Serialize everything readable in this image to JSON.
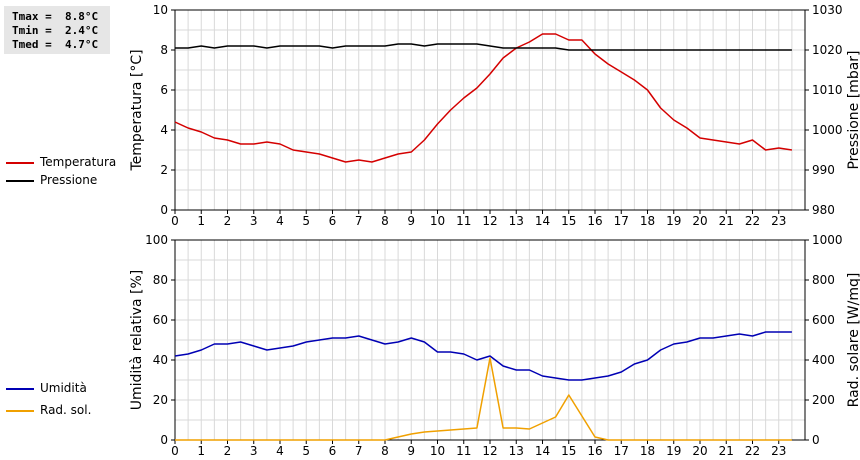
{
  "stats": {
    "tmax": "Tmax =  8.8°C",
    "tmin": "Tmin =  2.4°C",
    "tmed": "Tmed =  4.7°C"
  },
  "legend_top": [
    {
      "label": "Temperatura",
      "color": "#d40000"
    },
    {
      "label": "Pressione",
      "color": "#000000"
    }
  ],
  "legend_bottom": [
    {
      "label": "Umidità",
      "color": "#0000b4"
    },
    {
      "label": "Rad. sol.",
      "color": "#f0a000"
    }
  ],
  "chart_data": [
    {
      "type": "line",
      "xlabel": "",
      "xlim": [
        0,
        24
      ],
      "xticks": [
        0,
        1,
        2,
        3,
        4,
        5,
        6,
        7,
        8,
        9,
        10,
        11,
        12,
        13,
        14,
        15,
        16,
        17,
        18,
        19,
        20,
        21,
        22,
        23
      ],
      "grid": true,
      "y_left": {
        "label": "Temperatura [°C]",
        "lim": [
          0,
          10
        ],
        "ticks": [
          0,
          2,
          4,
          6,
          8,
          10
        ]
      },
      "y_right": {
        "label": "Pressione [mbar]",
        "lim": [
          980,
          1030
        ],
        "ticks": [
          980,
          990,
          1000,
          1010,
          1020,
          1030
        ]
      },
      "x": [
        0,
        0.5,
        1,
        1.5,
        2,
        2.5,
        3,
        3.5,
        4,
        4.5,
        5,
        5.5,
        6,
        6.5,
        7,
        7.5,
        8,
        8.5,
        9,
        9.5,
        10,
        10.5,
        11,
        11.5,
        12,
        12.5,
        13,
        13.5,
        14,
        14.5,
        15,
        15.5,
        16,
        16.5,
        17,
        17.5,
        18,
        18.5,
        19,
        19.5,
        20,
        20.5,
        21,
        21.5,
        22,
        22.5,
        23,
        23.5
      ],
      "series": [
        {
          "name": "Temperatura",
          "axis": "left",
          "color": "#d40000",
          "values": [
            4.4,
            4.1,
            3.9,
            3.6,
            3.5,
            3.3,
            3.3,
            3.4,
            3.3,
            3.0,
            2.9,
            2.8,
            2.6,
            2.4,
            2.5,
            2.4,
            2.6,
            2.8,
            2.9,
            3.5,
            4.3,
            5.0,
            5.6,
            6.1,
            6.8,
            7.6,
            8.1,
            8.4,
            8.8,
            8.8,
            8.5,
            8.5,
            7.8,
            7.3,
            6.9,
            6.5,
            6.0,
            5.1,
            4.5,
            4.1,
            3.6,
            3.5,
            3.4,
            3.3,
            3.5,
            3.0,
            3.1,
            3.0
          ]
        },
        {
          "name": "Pressione",
          "axis": "right",
          "color": "#000000",
          "values": [
            1020.5,
            1020.5,
            1021,
            1020.5,
            1021,
            1021,
            1021,
            1020.5,
            1021,
            1021,
            1021,
            1021,
            1020.5,
            1021,
            1021,
            1021,
            1021,
            1021.5,
            1021.5,
            1021,
            1021.5,
            1021.5,
            1021.5,
            1021.5,
            1021,
            1020.5,
            1020.5,
            1020.5,
            1020.5,
            1020.5,
            1020,
            1020,
            1020,
            1020,
            1020,
            1020,
            1020,
            1020,
            1020,
            1020,
            1020,
            1020,
            1020,
            1020,
            1020,
            1020,
            1020,
            1020
          ]
        }
      ]
    },
    {
      "type": "line",
      "xlabel": "",
      "xlim": [
        0,
        24
      ],
      "xticks": [
        0,
        1,
        2,
        3,
        4,
        5,
        6,
        7,
        8,
        9,
        10,
        11,
        12,
        13,
        14,
        15,
        16,
        17,
        18,
        19,
        20,
        21,
        22,
        23
      ],
      "grid": true,
      "y_left": {
        "label": "Umidità relativa [%]",
        "lim": [
          0,
          100
        ],
        "ticks": [
          0,
          20,
          40,
          60,
          80,
          100
        ]
      },
      "y_right": {
        "label": "Rad. solare [W/mq]",
        "lim": [
          0,
          1000
        ],
        "ticks": [
          0,
          200,
          400,
          600,
          800,
          1000
        ]
      },
      "x": [
        0,
        0.5,
        1,
        1.5,
        2,
        2.5,
        3,
        3.5,
        4,
        4.5,
        5,
        5.5,
        6,
        6.5,
        7,
        7.5,
        8,
        8.5,
        9,
        9.5,
        10,
        10.5,
        11,
        11.5,
        12,
        12.5,
        13,
        13.5,
        14,
        14.5,
        15,
        15.5,
        16,
        16.5,
        17,
        17.5,
        18,
        18.5,
        19,
        19.5,
        20,
        20.5,
        21,
        21.5,
        22,
        22.5,
        23,
        23.5
      ],
      "series": [
        {
          "name": "Umidità",
          "axis": "left",
          "color": "#0000b4",
          "values": [
            42,
            43,
            45,
            48,
            48,
            49,
            47,
            45,
            46,
            47,
            49,
            50,
            51,
            51,
            52,
            50,
            48,
            49,
            51,
            49,
            44,
            44,
            43,
            40,
            42,
            37,
            35,
            35,
            32,
            31,
            30,
            30,
            31,
            32,
            34,
            38,
            40,
            45,
            48,
            49,
            51,
            51,
            52,
            53,
            52,
            54,
            54,
            54
          ]
        },
        {
          "name": "Rad. sol.",
          "axis": "right",
          "color": "#f0a000",
          "values": [
            0,
            0,
            0,
            0,
            0,
            0,
            0,
            0,
            0,
            0,
            0,
            0,
            0,
            0,
            0,
            0,
            0,
            15,
            30,
            40,
            45,
            50,
            55,
            60,
            410,
            60,
            60,
            55,
            85,
            115,
            225,
            120,
            15,
            0,
            0,
            0,
            0,
            0,
            0,
            0,
            0,
            0,
            0,
            0,
            0,
            0,
            0,
            0
          ]
        }
      ]
    }
  ]
}
